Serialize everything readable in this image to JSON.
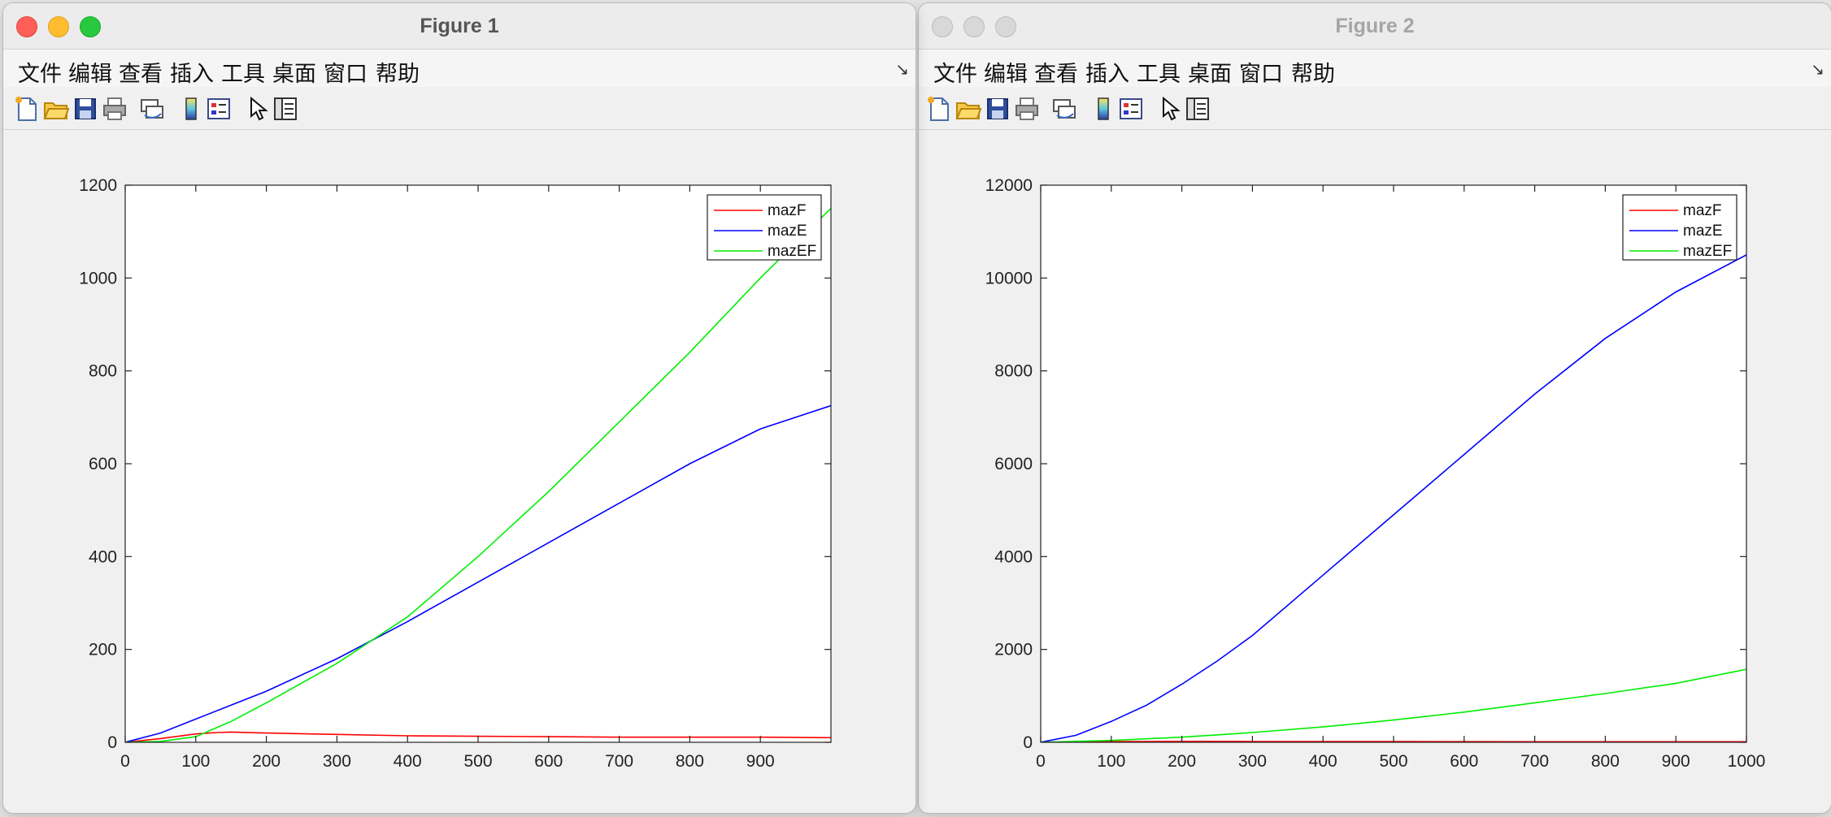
{
  "figure1": {
    "title": "Figure 1",
    "menu": [
      "文件",
      "编辑",
      "查看",
      "插入",
      "工具",
      "桌面",
      "窗口",
      "帮助"
    ],
    "chart_data": {
      "type": "line",
      "xlim": [
        0,
        1000
      ],
      "ylim": [
        0,
        1200
      ],
      "xticks": [
        0,
        100,
        200,
        300,
        400,
        500,
        600,
        700,
        800,
        900
      ],
      "yticks": [
        0,
        200,
        400,
        600,
        800,
        1000,
        1200
      ],
      "legend_position": "top-right",
      "grid": false,
      "series": [
        {
          "name": "mazF",
          "color": "#ff0000",
          "x": [
            0,
            50,
            100,
            130,
            150,
            200,
            300,
            400,
            500,
            600,
            700,
            800,
            900,
            1000
          ],
          "y": [
            0,
            8,
            18,
            21,
            22,
            20,
            17,
            14,
            13,
            12,
            11,
            11,
            11,
            10
          ]
        },
        {
          "name": "mazE",
          "color": "#0000ff",
          "x": [
            0,
            50,
            100,
            150,
            200,
            300,
            400,
            500,
            600,
            700,
            800,
            900,
            1000
          ],
          "y": [
            0,
            20,
            50,
            80,
            110,
            180,
            260,
            345,
            430,
            515,
            600,
            675,
            725
          ]
        },
        {
          "name": "mazEF",
          "color": "#00ee00",
          "x": [
            0,
            50,
            100,
            150,
            200,
            300,
            400,
            500,
            600,
            700,
            800,
            900,
            1000
          ],
          "y": [
            0,
            2,
            12,
            45,
            85,
            170,
            270,
            400,
            540,
            690,
            840,
            1000,
            1150
          ]
        }
      ]
    }
  },
  "figure2": {
    "title": "Figure 2",
    "menu": [
      "文件",
      "编辑",
      "查看",
      "插入",
      "工具",
      "桌面",
      "窗口",
      "帮助"
    ],
    "chart_data": {
      "type": "line",
      "xlim": [
        0,
        1000
      ],
      "ylim": [
        0,
        12000
      ],
      "xticks": [
        0,
        100,
        200,
        300,
        400,
        500,
        600,
        700,
        800,
        900,
        1000
      ],
      "yticks": [
        0,
        2000,
        4000,
        6000,
        8000,
        10000,
        12000
      ],
      "legend_position": "top-right",
      "grid": false,
      "series": [
        {
          "name": "mazF",
          "color": "#ff0000",
          "x": [
            0,
            100,
            200,
            300,
            400,
            500,
            600,
            700,
            800,
            900,
            1000
          ],
          "y": [
            0,
            15,
            20,
            18,
            16,
            15,
            14,
            13,
            12,
            12,
            12
          ]
        },
        {
          "name": "mazE",
          "color": "#0000ff",
          "x": [
            0,
            50,
            100,
            150,
            200,
            250,
            300,
            400,
            500,
            600,
            700,
            800,
            900,
            1000
          ],
          "y": [
            0,
            150,
            450,
            800,
            1250,
            1750,
            2300,
            3600,
            4900,
            6200,
            7500,
            8700,
            9700,
            10500
          ]
        },
        {
          "name": "mazEF",
          "color": "#00ee00",
          "x": [
            0,
            100,
            200,
            300,
            400,
            500,
            600,
            700,
            800,
            900,
            1000
          ],
          "y": [
            0,
            40,
            110,
            210,
            330,
            480,
            650,
            850,
            1050,
            1270,
            1570
          ]
        }
      ]
    }
  },
  "toolbar_icons": [
    "new-figure-icon",
    "open-file-icon",
    "save-icon",
    "print-icon",
    "link-plot-icon",
    "insert-colorbar-icon",
    "insert-legend-icon",
    "edit-plot-pointer-icon",
    "property-inspector-icon"
  ]
}
